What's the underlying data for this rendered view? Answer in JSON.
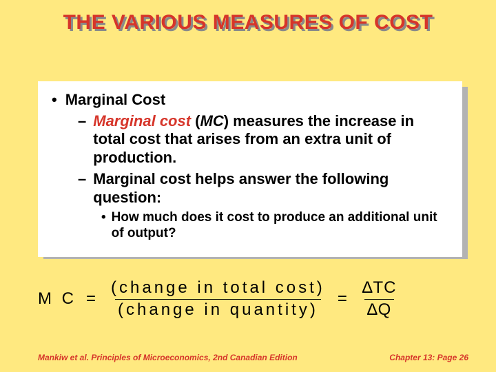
{
  "title": "THE VARIOUS MEASURES OF COST",
  "content": {
    "l1": "Marginal Cost",
    "l2a": {
      "term": "Marginal cost",
      "abbr": "MC",
      "rest_before_paren": " (",
      "rest_after_paren": ") measures the increase in total cost that arises from an extra unit of production."
    },
    "l2b": "Marginal cost helps answer the following question:",
    "l3": "How much does it cost to produce an additional unit of output?"
  },
  "equation": {
    "lhs": "M C",
    "eq": "=",
    "frac1_num": "(change in total cost)",
    "frac1_den": "(change in quantity)",
    "frac2_num": "∆TC",
    "frac2_den": "∆Q"
  },
  "footer": {
    "left": "Mankiw et al. Principles of Microeconomics, 2nd Canadian Edition",
    "right": "Chapter 13: Page 26"
  },
  "colors": {
    "background": "#ffe980",
    "accent": "#d6352a",
    "shadow": "#b3b3b3",
    "box": "#ffffff"
  }
}
